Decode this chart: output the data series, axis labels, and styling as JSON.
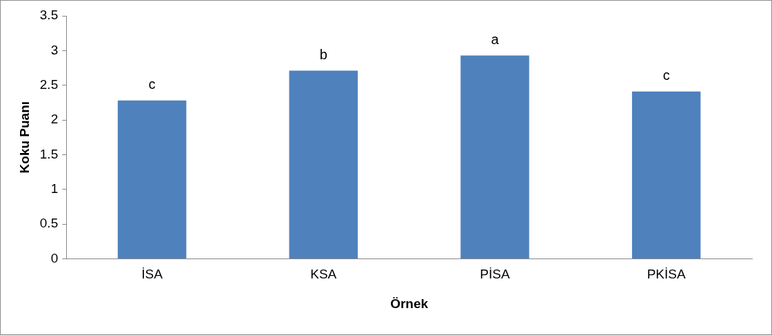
{
  "chart_data": {
    "type": "bar",
    "xlabel": "Örnek",
    "ylabel": "Koku Puanı",
    "categories": [
      "İSA",
      "KSA",
      "PİSA",
      "PKİSA"
    ],
    "values": [
      2.28,
      2.71,
      2.93,
      2.41
    ],
    "color": "#4f81bd",
    "ylim": [
      0,
      3.5
    ],
    "yticks": [
      0,
      0.5,
      1,
      1.5,
      2,
      2.5,
      3,
      3.5
    ],
    "grid": false,
    "legend": false,
    "annotations": [
      {
        "text": "c",
        "x": "İSA",
        "y": 2.28
      },
      {
        "text": "b",
        "x": "KSA",
        "y": 2.71
      },
      {
        "text": "a",
        "x": "PİSA",
        "y": 2.93
      },
      {
        "text": "c",
        "x": "PKİSA",
        "y": 2.41
      }
    ]
  }
}
